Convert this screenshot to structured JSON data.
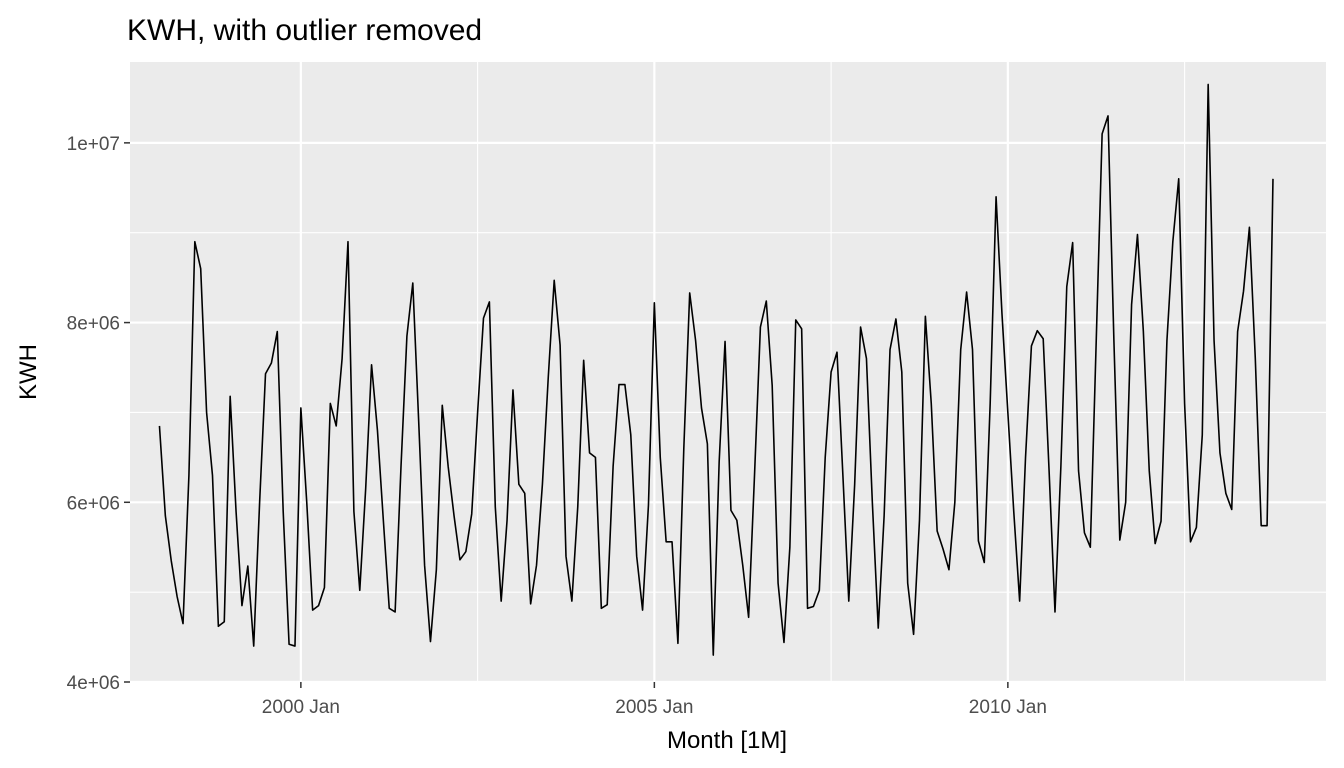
{
  "chart_data": {
    "type": "line",
    "title": "KWH, with outlier removed",
    "xlabel": "Month [1M]",
    "ylabel": "KWH",
    "xlim": [
      "1997-08",
      "2014-07"
    ],
    "ylim": [
      4000000,
      10900000
    ],
    "x_ticks": [
      {
        "value": "2000-01",
        "label": "2000 Jan"
      },
      {
        "value": "2005-01",
        "label": "2005 Jan"
      },
      {
        "value": "2010-01",
        "label": "2010 Jan"
      }
    ],
    "y_ticks": [
      {
        "value": 4000000,
        "label": "4e+06"
      },
      {
        "value": 6000000,
        "label": "6e+06"
      },
      {
        "value": 8000000,
        "label": "8e+06"
      },
      {
        "value": 10000000,
        "label": "1e+07"
      }
    ],
    "grid": true,
    "background": "#ebebeb",
    "grid_color": "#ffffff",
    "line_color": "#000000",
    "series": [
      {
        "start": "1998-01",
        "values": [
          6850000,
          5850000,
          5350000,
          4950000,
          4650000,
          6300000,
          8900000,
          8600000,
          7000000,
          6300000,
          4620000,
          4670000,
          7180000,
          5900000,
          4850000,
          5290000,
          4400000,
          6000000,
          7430000,
          7550000,
          7900000,
          5900000,
          4420000,
          4400000,
          7050000,
          6000000,
          4800000,
          4850000,
          5050000,
          7100000,
          6850000,
          7600000,
          8900000,
          5900000,
          5020000,
          6150000,
          7530000,
          6800000,
          5800000,
          4820000,
          4780000,
          6400000,
          7850000,
          8440000,
          6900000,
          5300000,
          4450000,
          5250000,
          7080000,
          6400000,
          5850000,
          5360000,
          5450000,
          5870000,
          7000000,
          8050000,
          8230000,
          5950000,
          4900000,
          5800000,
          7250000,
          6200000,
          6100000,
          4870000,
          5300000,
          6200000,
          7400000,
          8470000,
          7750000,
          5400000,
          4900000,
          5950000,
          7580000,
          6550000,
          6500000,
          4820000,
          4860000,
          6400000,
          7310000,
          7310000,
          6750000,
          5400000,
          4800000,
          5970000,
          8220000,
          6500000,
          5560000,
          5560000,
          4430000,
          6600000,
          8330000,
          7800000,
          7050000,
          6650000,
          4300000,
          6450000,
          7790000,
          5910000,
          5800000,
          5300000,
          4720000,
          6300000,
          7950000,
          8240000,
          7300000,
          5100000,
          4440000,
          5500000,
          8030000,
          7930000,
          4820000,
          4840000,
          5020000,
          6500000,
          7450000,
          7670000,
          6300000,
          4900000,
          6200000,
          7950000,
          7600000,
          6000000,
          4600000,
          5850000,
          7700000,
          8040000,
          7450000,
          5100000,
          4530000,
          5800000,
          8070000,
          7100000,
          5680000,
          5480000,
          5250000,
          6000000,
          7700000,
          8340000,
          7700000,
          5570000,
          5330000,
          7100000,
          9400000,
          8100000,
          7000000,
          5900000,
          4900000,
          6500000,
          7740000,
          7910000,
          7820000,
          6350000,
          4780000,
          6400000,
          8400000,
          8890000,
          6350000,
          5660000,
          5500000,
          7800000,
          10100000,
          10300000,
          7800000,
          5580000,
          6000000,
          8200000,
          8980000,
          7900000,
          6350000,
          5540000,
          5790000,
          7800000,
          8900000,
          9600000,
          7100000,
          5560000,
          5720000,
          6750000,
          10650000,
          7800000,
          6550000,
          6100000,
          5920000,
          7900000,
          8350000,
          9060000,
          7600000,
          5740000,
          5740000,
          9600000
        ]
      }
    ]
  }
}
